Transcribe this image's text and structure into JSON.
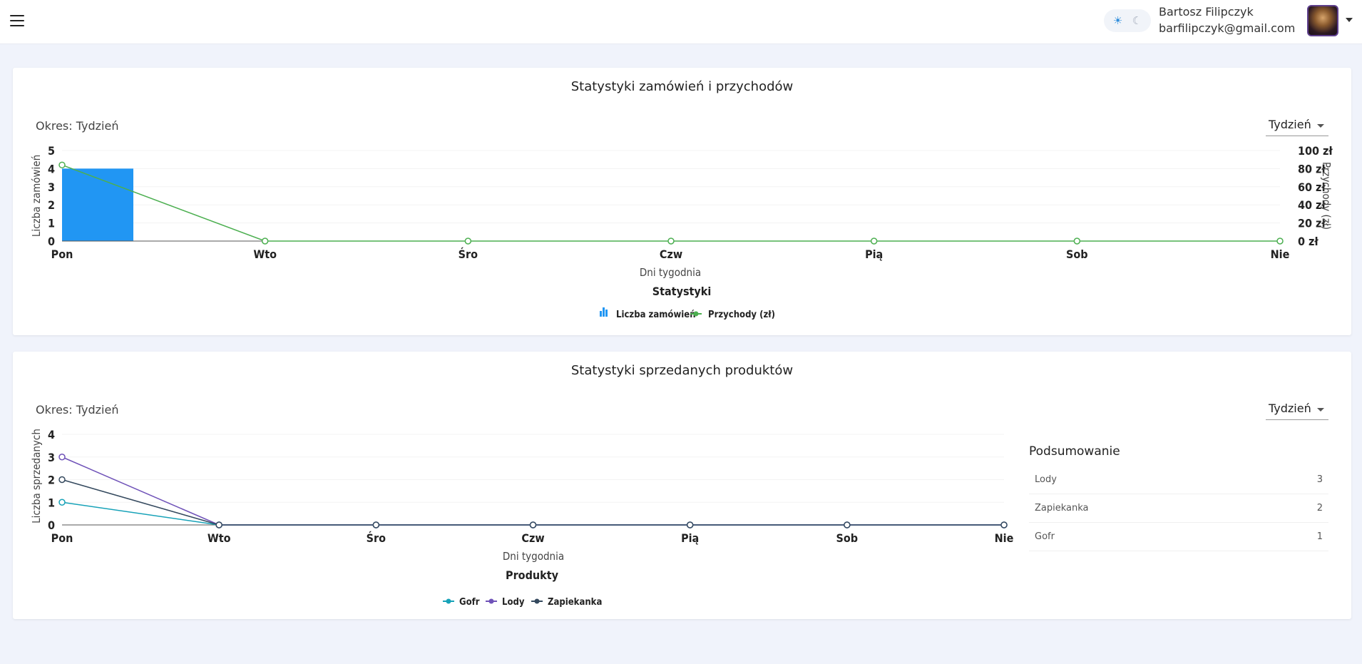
{
  "header": {
    "user_name": "Bartosz Filipczyk",
    "user_email": "barfilipczyk@gmail.com"
  },
  "orders_card": {
    "title": "Statystyki zamówień i przychodów",
    "period_label": "Okres: Tydzień",
    "period_select": "Tydzień"
  },
  "products_card": {
    "title": "Statystyki sprzedanych produktów",
    "period_label": "Okres: Tydzień",
    "period_select": "Tydzień",
    "summary": {
      "title": "Podsumowanie",
      "rows": [
        {
          "name": "Lody",
          "count": "3"
        },
        {
          "name": "Zapiekanka",
          "count": "2"
        },
        {
          "name": "Gofr",
          "count": "1"
        }
      ]
    }
  },
  "colors": {
    "bar": "#2196f3",
    "revenue": "#4caf50",
    "gofr": "#17a2b8",
    "lody": "#6f52b8",
    "zapiekanka": "#34495e"
  },
  "chart_data": [
    {
      "type": "bar",
      "categories": [
        "Pon",
        "Wto",
        "Śro",
        "Czw",
        "Pią",
        "Sob",
        "Nie"
      ],
      "series": [
        {
          "name": "Liczba zamówień",
          "type": "bar",
          "axis": "left",
          "values": [
            4,
            0,
            0,
            0,
            0,
            0,
            0
          ]
        },
        {
          "name": "Przychody (zł)",
          "type": "line",
          "axis": "right",
          "values": [
            84,
            0,
            0,
            0,
            0,
            0,
            0
          ]
        }
      ],
      "title": "Statystyki",
      "xlabel": "Dni tygodnia",
      "ylabel": "Liczba zamówień",
      "y2label": "Przychody (zł)",
      "ylim": [
        0,
        5
      ],
      "y2lim": [
        0,
        100
      ],
      "yticks": [
        "0",
        "1",
        "2",
        "3",
        "4",
        "5"
      ],
      "y2ticks": [
        "0 zł",
        "20 zł",
        "40 zł",
        "60 zł",
        "80 zł",
        "100 zł"
      ],
      "legend": "bottom"
    },
    {
      "type": "line",
      "categories": [
        "Pon",
        "Wto",
        "Śro",
        "Czw",
        "Pią",
        "Sob",
        "Nie"
      ],
      "series": [
        {
          "name": "Gofr",
          "values": [
            1,
            0,
            0,
            0,
            0,
            0,
            0
          ]
        },
        {
          "name": "Lody",
          "values": [
            3,
            0,
            0,
            0,
            0,
            0,
            0
          ]
        },
        {
          "name": "Zapiekanka",
          "values": [
            2,
            0,
            0,
            0,
            0,
            0,
            0
          ]
        }
      ],
      "title": "Produkty",
      "xlabel": "Dni tygodnia",
      "ylabel": "Liczba sprzedanych",
      "ylim": [
        0,
        4
      ],
      "yticks": [
        "0",
        "1",
        "2",
        "3",
        "4"
      ],
      "legend": "bottom"
    }
  ]
}
